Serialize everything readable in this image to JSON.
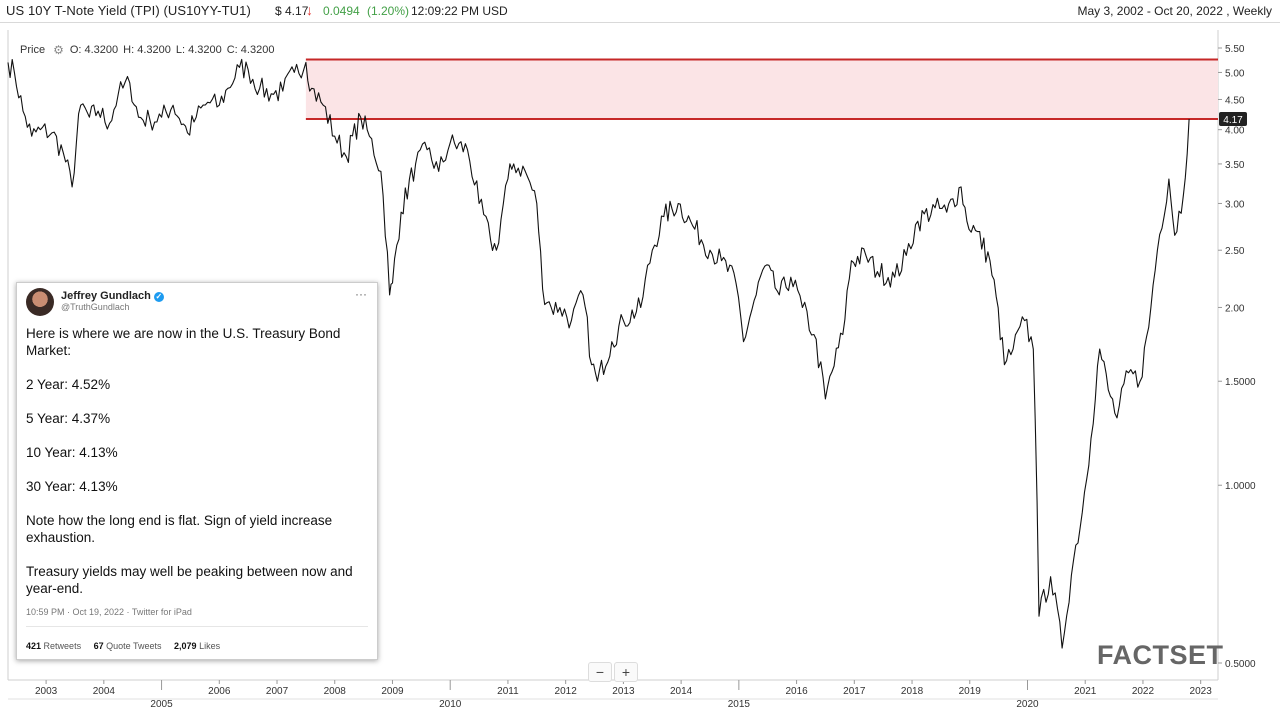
{
  "header": {
    "title": "US 10Y T-Note Yield (TPI)  (US10YY-TU1)",
    "price": "$ 4.17",
    "arrow": "↓",
    "change": "0.0494",
    "change_pct": "(1.20%)",
    "time": "12:09:22 PM USD",
    "range": "May 3, 2002 - Oct 20, 2022 , Weekly"
  },
  "ohlc": {
    "label": "Price",
    "open": "O: 4.3200",
    "high": "H: 4.3200",
    "low": "L: 4.3200",
    "close": "C: 4.3200"
  },
  "zoom": {
    "minus": "−",
    "plus": "+"
  },
  "watermark": "FACTSET",
  "tweet": {
    "name": "Jeffrey Gundlach",
    "handle": "@TruthGundlach",
    "lines": [
      "Here is where we are now in the U.S. Treasury Bond Market:",
      "2 Year:  4.52%",
      "5 Year:  4.37%",
      "10 Year:  4.13%",
      "30 Year:  4.13%",
      "Note how the long end is flat.  Sign of yield increase exhaustion.",
      "Treasury yields may well be peaking between now and year-end."
    ],
    "meta": "10:59 PM · Oct 19, 2022 · Twitter for iPad",
    "retweets": "421",
    "retweets_label": "Retweets",
    "quotes": "67",
    "quotes_label": "Quote Tweets",
    "likes": "2,079",
    "likes_label": "Likes"
  },
  "colors": {
    "band_fill": "#fbe4e6",
    "band_line": "#c62828",
    "line": "#111111",
    "last_price_bg": "#222222"
  },
  "chart_data": {
    "type": "line",
    "yscale": "log",
    "ylim": [
      0.5,
      5.6
    ],
    "xlim": [
      2002.34,
      2023.3
    ],
    "y_ticks": [
      "5.50",
      "5.00",
      "4.50",
      "4.00",
      "3.50",
      "3.00",
      "2.50",
      "2.00",
      "1.5000",
      "1.0000",
      "0.5000"
    ],
    "y_tick_values": [
      5.5,
      5.0,
      4.5,
      4.0,
      3.5,
      3.0,
      2.5,
      2.0,
      1.5,
      1.0,
      0.5
    ],
    "x_ticks_top": [
      "2003",
      "2004",
      "2006",
      "2007",
      "2008",
      "2009",
      "2011",
      "2012",
      "2013",
      "2014",
      "2016",
      "2017",
      "2018",
      "2019",
      "2021",
      "2022",
      "2023"
    ],
    "x_ticks_top_values": [
      2003,
      2004,
      2006,
      2007,
      2008,
      2009,
      2011,
      2012,
      2013,
      2014,
      2016,
      2017,
      2018,
      2019,
      2021,
      2022,
      2023
    ],
    "x_ticks_bottom": [
      "2005",
      "2010",
      "2015",
      "2020"
    ],
    "x_ticks_bottom_values": [
      2005,
      2010,
      2015,
      2020
    ],
    "last_value_label": "4.17",
    "last_value": 4.17,
    "band": {
      "x_start": 2007.5,
      "y_low": 4.17,
      "y_high": 5.26
    },
    "series": [
      {
        "x": [
          2002.34,
          2002.45,
          2002.6,
          2002.75,
          2002.9,
          2003.1,
          2003.3,
          2003.45,
          2003.6,
          2003.75,
          2003.9,
          2004.1,
          2004.25,
          2004.45,
          2004.6,
          2004.8,
          2005.0,
          2005.2,
          2005.45,
          2005.6,
          2005.8,
          2006.0,
          2006.15,
          2006.35,
          2006.5,
          2006.7,
          2006.9,
          2007.1,
          2007.3,
          2007.5,
          2007.6,
          2007.8,
          2008.0,
          2008.2,
          2008.45,
          2008.6,
          2008.8,
          2008.95,
          2009.0,
          2009.15,
          2009.4,
          2009.6,
          2009.8,
          2010.0,
          2010.3,
          2010.5,
          2010.7,
          2010.8,
          2011.0,
          2011.1,
          2011.3,
          2011.5,
          2011.6,
          2011.75,
          2011.9,
          2012.1,
          2012.3,
          2012.45,
          2012.55,
          2012.8,
          2013.0,
          2013.3,
          2013.5,
          2013.7,
          2013.95,
          2014.2,
          2014.5,
          2014.7,
          2014.95,
          2015.08,
          2015.3,
          2015.45,
          2015.7,
          2015.9,
          2016.1,
          2016.3,
          2016.5,
          2016.8,
          2016.95,
          2017.2,
          2017.4,
          2017.7,
          2017.9,
          2018.1,
          2018.4,
          2018.6,
          2018.85,
          2018.95,
          2019.1,
          2019.35,
          2019.6,
          2019.75,
          2019.95,
          2020.1,
          2020.2,
          2020.4,
          2020.6,
          2020.8,
          2020.95,
          2021.1,
          2021.25,
          2021.4,
          2021.55,
          2021.75,
          2021.95,
          2022.1,
          2022.25,
          2022.45,
          2022.55,
          2022.7,
          2022.8
        ],
        "y": [
          5.2,
          5.0,
          4.3,
          3.9,
          4.0,
          3.95,
          3.65,
          3.2,
          4.4,
          4.2,
          4.3,
          4.1,
          4.6,
          4.8,
          4.2,
          4.15,
          4.2,
          4.4,
          3.95,
          4.2,
          4.45,
          4.4,
          4.7,
          5.1,
          5.05,
          4.7,
          4.6,
          4.65,
          5.0,
          5.2,
          4.7,
          4.4,
          3.9,
          3.6,
          4.2,
          3.9,
          3.4,
          2.1,
          2.2,
          2.9,
          3.5,
          3.7,
          3.4,
          3.8,
          3.7,
          3.0,
          2.6,
          2.5,
          3.3,
          3.5,
          3.4,
          3.0,
          2.15,
          2.0,
          2.0,
          1.9,
          2.1,
          1.6,
          1.5,
          1.75,
          1.9,
          2.0,
          2.5,
          2.85,
          3.0,
          2.75,
          2.5,
          2.4,
          2.2,
          1.75,
          2.1,
          2.35,
          2.1,
          2.25,
          2.0,
          1.8,
          1.4,
          1.8,
          2.4,
          2.45,
          2.3,
          2.25,
          2.45,
          2.8,
          2.95,
          2.9,
          3.2,
          2.8,
          2.7,
          2.4,
          1.6,
          1.7,
          1.9,
          1.7,
          0.6,
          0.7,
          0.53,
          0.75,
          0.9,
          1.2,
          1.7,
          1.45,
          1.3,
          1.55,
          1.5,
          1.85,
          2.5,
          3.3,
          2.65,
          3.1,
          4.17
        ]
      }
    ]
  }
}
